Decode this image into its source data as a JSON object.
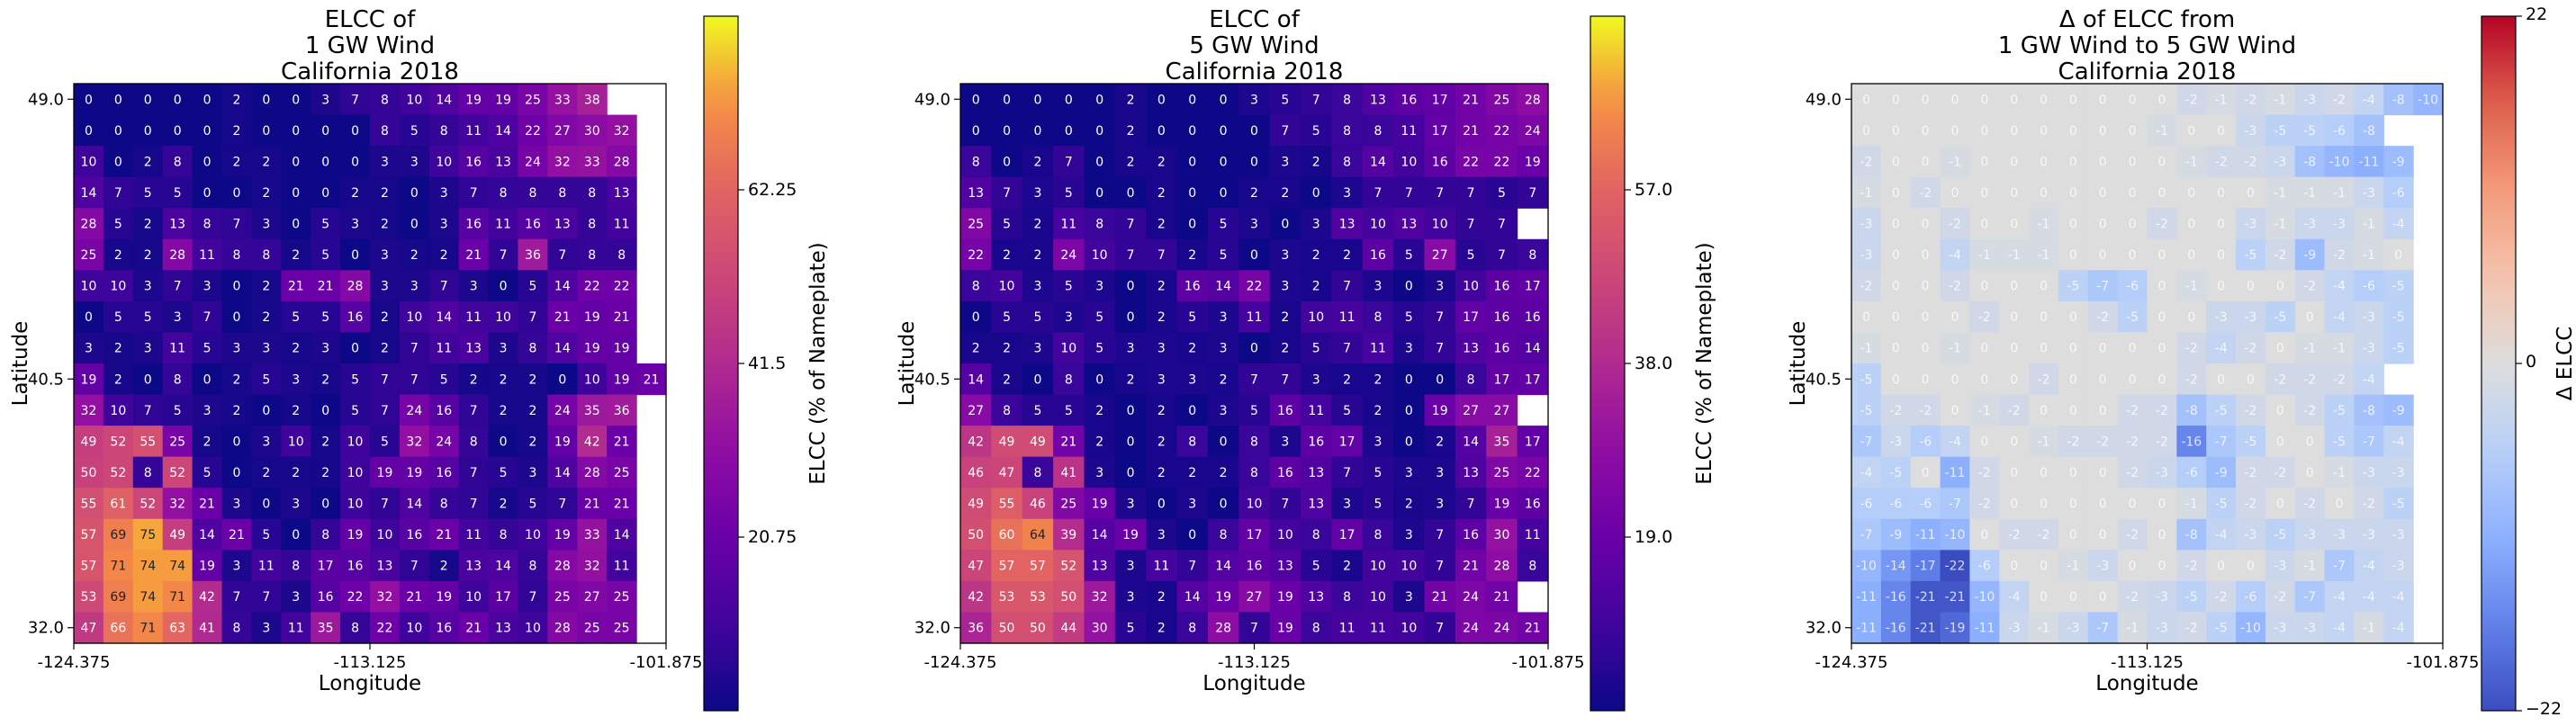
{
  "chart_data": [
    {
      "type": "heatmap",
      "title": [
        "ELCC of",
        "1 GW Wind",
        "California 2018"
      ],
      "xlabel": "Longitude",
      "ylabel": "Latitude",
      "xticks": [
        "-124.375",
        "-113.125",
        "-101.875"
      ],
      "yticks": [
        "49.0",
        "40.5",
        "32.0"
      ],
      "colorbar_label": "ELCC (% of Nameplate)",
      "colorbar_ticks": [
        "20.75",
        "41.5",
        "62.25"
      ],
      "colormap": "plasma",
      "vmin": 0,
      "vmax": 83,
      "colorbar_tick_values": [
        20.75,
        41.5,
        62.25
      ],
      "rows": [
        [
          0,
          0,
          0,
          0,
          0,
          2,
          0,
          0,
          3,
          7,
          8,
          10,
          14,
          19,
          19,
          25,
          33,
          38
        ],
        [
          0,
          0,
          0,
          0,
          0,
          2,
          0,
          0,
          0,
          0,
          8,
          5,
          8,
          11,
          14,
          22,
          27,
          30,
          32
        ],
        [
          10,
          0,
          2,
          8,
          0,
          2,
          2,
          0,
          0,
          0,
          3,
          3,
          10,
          16,
          13,
          24,
          32,
          33,
          28
        ],
        [
          14,
          7,
          5,
          5,
          0,
          0,
          2,
          0,
          0,
          2,
          2,
          0,
          3,
          7,
          8,
          8,
          8,
          8,
          13
        ],
        [
          28,
          5,
          2,
          13,
          8,
          7,
          3,
          0,
          5,
          3,
          2,
          0,
          3,
          16,
          11,
          16,
          13,
          8,
          11
        ],
        [
          25,
          2,
          2,
          28,
          11,
          8,
          8,
          2,
          5,
          0,
          3,
          2,
          2,
          21,
          7,
          36,
          7,
          8,
          8
        ],
        [
          10,
          10,
          3,
          7,
          3,
          0,
          2,
          21,
          21,
          28,
          3,
          3,
          7,
          3,
          0,
          5,
          14,
          22,
          22
        ],
        [
          0,
          5,
          5,
          3,
          7,
          0,
          2,
          5,
          5,
          16,
          2,
          10,
          14,
          11,
          10,
          7,
          21,
          19,
          21
        ],
        [
          3,
          2,
          3,
          11,
          5,
          3,
          3,
          2,
          3,
          0,
          2,
          7,
          11,
          13,
          3,
          8,
          14,
          19,
          19
        ],
        [
          19,
          2,
          0,
          8,
          0,
          2,
          5,
          3,
          2,
          5,
          7,
          7,
          5,
          2,
          2,
          2,
          0,
          10,
          19,
          21
        ],
        [
          32,
          10,
          7,
          5,
          3,
          2,
          0,
          2,
          0,
          5,
          7,
          24,
          16,
          7,
          2,
          2,
          24,
          35,
          36
        ],
        [
          49,
          52,
          55,
          25,
          2,
          0,
          3,
          10,
          2,
          10,
          5,
          32,
          24,
          8,
          0,
          2,
          19,
          42,
          21
        ],
        [
          50,
          52,
          8,
          52,
          5,
          0,
          2,
          2,
          2,
          10,
          19,
          19,
          16,
          7,
          5,
          3,
          14,
          28,
          25
        ],
        [
          55,
          61,
          52,
          32,
          21,
          3,
          0,
          3,
          0,
          10,
          7,
          14,
          8,
          7,
          2,
          5,
          7,
          21,
          21
        ],
        [
          57,
          69,
          75,
          49,
          14,
          21,
          5,
          0,
          8,
          19,
          10,
          16,
          21,
          11,
          8,
          10,
          19,
          33,
          14
        ],
        [
          57,
          71,
          74,
          74,
          19,
          3,
          11,
          8,
          17,
          16,
          13,
          7,
          2,
          13,
          14,
          8,
          28,
          32,
          11
        ],
        [
          53,
          69,
          74,
          71,
          42,
          7,
          7,
          3,
          16,
          22,
          32,
          21,
          19,
          10,
          17,
          7,
          25,
          27,
          25
        ],
        [
          47,
          66,
          71,
          63,
          41,
          8,
          3,
          11,
          35,
          8,
          22,
          10,
          16,
          21,
          13,
          10,
          28,
          25,
          25
        ]
      ]
    },
    {
      "type": "heatmap",
      "title": [
        "ELCC of",
        "5 GW Wind",
        "California 2018"
      ],
      "xlabel": "Longitude",
      "ylabel": "Latitude",
      "xticks": [
        "-124.375",
        "-113.125",
        "-101.875"
      ],
      "yticks": [
        "49.0",
        "40.5",
        "32.0"
      ],
      "colorbar_label": "ELCC (% of Nameplate)",
      "colorbar_ticks": [
        "19.0",
        "38.0",
        "57.0"
      ],
      "colormap": "plasma",
      "vmin": 0,
      "vmax": 76,
      "colorbar_tick_values": [
        19.0,
        38.0,
        57.0
      ],
      "rows": [
        [
          0,
          0,
          0,
          0,
          0,
          2,
          0,
          0,
          0,
          3,
          5,
          7,
          8,
          13,
          16,
          17,
          21,
          25,
          28
        ],
        [
          0,
          0,
          0,
          0,
          0,
          2,
          0,
          0,
          0,
          0,
          7,
          5,
          8,
          8,
          11,
          17,
          21,
          22,
          24
        ],
        [
          8,
          0,
          2,
          7,
          0,
          2,
          2,
          0,
          0,
          0,
          3,
          2,
          8,
          14,
          10,
          16,
          22,
          22,
          19
        ],
        [
          13,
          7,
          3,
          5,
          0,
          0,
          2,
          0,
          0,
          2,
          2,
          0,
          3,
          7,
          7,
          7,
          7,
          5,
          7
        ],
        [
          25,
          5,
          2,
          11,
          8,
          7,
          2,
          0,
          5,
          3,
          0,
          3,
          13,
          10,
          13,
          10,
          7,
          7
        ],
        [
          22,
          2,
          2,
          24,
          10,
          7,
          7,
          2,
          5,
          0,
          3,
          2,
          2,
          16,
          5,
          27,
          5,
          7,
          8
        ],
        [
          8,
          10,
          3,
          5,
          3,
          0,
          2,
          16,
          14,
          22,
          3,
          2,
          7,
          3,
          0,
          3,
          10,
          16,
          17
        ],
        [
          0,
          5,
          5,
          3,
          5,
          0,
          2,
          5,
          3,
          11,
          2,
          10,
          11,
          8,
          5,
          7,
          17,
          16,
          16
        ],
        [
          2,
          2,
          3,
          10,
          5,
          3,
          3,
          2,
          3,
          0,
          2,
          5,
          7,
          11,
          3,
          7,
          13,
          16,
          14
        ],
        [
          14,
          2,
          0,
          8,
          0,
          2,
          3,
          3,
          2,
          7,
          7,
          3,
          2,
          2,
          0,
          0,
          8,
          17,
          17
        ],
        [
          27,
          8,
          5,
          5,
          2,
          0,
          2,
          0,
          3,
          5,
          16,
          11,
          5,
          2,
          0,
          19,
          27,
          27
        ],
        [
          42,
          49,
          49,
          21,
          2,
          0,
          2,
          8,
          0,
          8,
          3,
          16,
          17,
          3,
          0,
          2,
          14,
          35,
          17
        ],
        [
          46,
          47,
          8,
          41,
          3,
          0,
          2,
          2,
          2,
          8,
          16,
          13,
          7,
          5,
          3,
          3,
          13,
          25,
          22
        ],
        [
          49,
          55,
          46,
          25,
          19,
          3,
          0,
          3,
          0,
          10,
          7,
          13,
          3,
          5,
          2,
          3,
          7,
          19,
          16
        ],
        [
          50,
          60,
          64,
          39,
          14,
          19,
          3,
          0,
          8,
          17,
          10,
          8,
          17,
          8,
          3,
          7,
          16,
          30,
          11
        ],
        [
          47,
          57,
          57,
          52,
          13,
          3,
          11,
          7,
          14,
          16,
          13,
          5,
          2,
          10,
          10,
          7,
          21,
          28,
          8
        ],
        [
          42,
          53,
          53,
          50,
          32,
          3,
          2,
          14,
          19,
          27,
          19,
          13,
          8,
          10,
          3,
          21,
          24,
          21
        ],
        [
          36,
          50,
          50,
          44,
          30,
          5,
          2,
          8,
          28,
          7,
          19,
          8,
          11,
          11,
          10,
          7,
          24,
          24,
          21
        ]
      ]
    },
    {
      "type": "heatmap",
      "title": [
        "Δ of ELCC from",
        "1 GW Wind to 5 GW Wind",
        "California 2018"
      ],
      "xlabel": "Longitude",
      "ylabel": "Latitude",
      "xticks": [
        "-124.375",
        "-113.125",
        "-101.875"
      ],
      "yticks": [
        "49.0",
        "40.5",
        "32.0"
      ],
      "colorbar_label": "Δ ELCC",
      "colorbar_ticks": [
        "−22",
        "0",
        "22"
      ],
      "colormap": "coolwarm",
      "vmin": -22,
      "vmax": 22,
      "colorbar_tick_values": [
        -22,
        0,
        22
      ],
      "rows": [
        [
          0,
          0,
          0,
          0,
          0,
          0,
          0,
          0,
          0,
          0,
          0,
          -2,
          -1,
          -2,
          -1,
          -3,
          -2,
          -4,
          -8,
          -10
        ],
        [
          0,
          0,
          0,
          0,
          0,
          0,
          0,
          0,
          0,
          0,
          -1,
          0,
          0,
          -3,
          -5,
          -5,
          -6,
          -8
        ],
        [
          -2,
          0,
          0,
          -1,
          0,
          0,
          0,
          0,
          0,
          0,
          0,
          -1,
          -2,
          -2,
          -3,
          -8,
          -10,
          -11,
          -9
        ],
        [
          -1,
          0,
          -2,
          0,
          0,
          0,
          0,
          0,
          0,
          0,
          0,
          0,
          0,
          0,
          -1,
          -1,
          -1,
          -3,
          -6
        ],
        [
          -3,
          0,
          0,
          -2,
          0,
          0,
          -1,
          0,
          0,
          0,
          -2,
          0,
          0,
          -3,
          -1,
          -3,
          -3,
          -1,
          -4
        ],
        [
          -3,
          0,
          0,
          -4,
          -1,
          -1,
          -1,
          0,
          0,
          0,
          0,
          0,
          0,
          -5,
          -2,
          -9,
          -2,
          -1,
          0
        ],
        [
          -2,
          0,
          0,
          -2,
          0,
          0,
          0,
          -5,
          -7,
          -6,
          0,
          -1,
          0,
          0,
          0,
          -2,
          -4,
          -6,
          -5
        ],
        [
          0,
          0,
          0,
          0,
          -2,
          0,
          0,
          0,
          -2,
          -5,
          0,
          0,
          -3,
          -3,
          -5,
          0,
          -4,
          -3,
          -5
        ],
        [
          -1,
          0,
          0,
          -1,
          0,
          0,
          0,
          0,
          0,
          0,
          0,
          -2,
          -4,
          -2,
          0,
          -1,
          -1,
          -3,
          -5
        ],
        [
          -5,
          0,
          0,
          0,
          0,
          0,
          -2,
          0,
          0,
          0,
          0,
          -2,
          0,
          0,
          -2,
          -2,
          -2,
          -4
        ],
        [
          -5,
          -2,
          -2,
          0,
          -1,
          -2,
          0,
          0,
          0,
          -2,
          -2,
          -8,
          -5,
          -2,
          0,
          -2,
          -5,
          -8,
          -9
        ],
        [
          -7,
          -3,
          -6,
          -4,
          0,
          0,
          -1,
          -2,
          -2,
          -2,
          -2,
          -16,
          -7,
          -5,
          0,
          0,
          -5,
          -7,
          -4
        ],
        [
          -4,
          -5,
          0,
          -11,
          -2,
          0,
          0,
          0,
          0,
          -2,
          -3,
          -6,
          -9,
          -2,
          -2,
          0,
          -1,
          -3,
          -3
        ],
        [
          -6,
          -6,
          -6,
          -7,
          -2,
          0,
          0,
          0,
          0,
          0,
          0,
          -1,
          -5,
          -2,
          0,
          -2,
          0,
          -2,
          -5
        ],
        [
          -7,
          -9,
          -11,
          -10,
          0,
          -2,
          -2,
          0,
          0,
          -2,
          0,
          -8,
          -4,
          -3,
          -5,
          -3,
          -3,
          -3,
          -3
        ],
        [
          -10,
          -14,
          -17,
          -22,
          -6,
          0,
          0,
          -1,
          -3,
          0,
          0,
          -2,
          0,
          0,
          -3,
          -1,
          -7,
          -4,
          -3
        ],
        [
          -11,
          -16,
          -21,
          -21,
          -10,
          -4,
          0,
          0,
          0,
          -2,
          -3,
          -5,
          -2,
          -6,
          -2,
          -7,
          -4,
          -4,
          -4
        ],
        [
          -11,
          -16,
          -21,
          -19,
          -11,
          -3,
          -1,
          -3,
          -7,
          -1,
          -3,
          -2,
          -5,
          -10,
          -3,
          -3,
          -4,
          -1,
          -4
        ]
      ]
    }
  ]
}
